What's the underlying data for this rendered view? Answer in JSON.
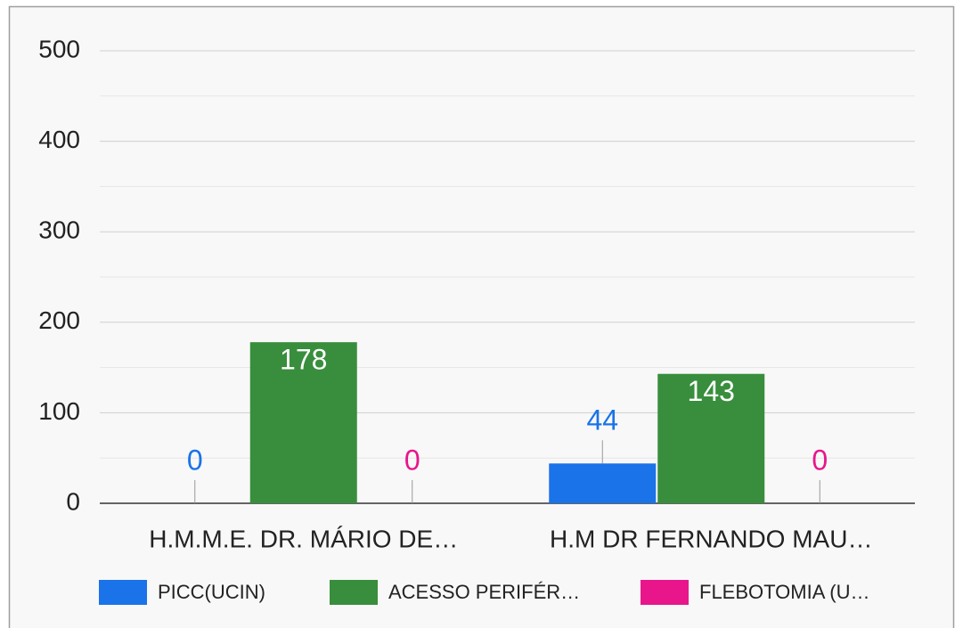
{
  "chart_data": {
    "type": "bar",
    "categories": [
      "H.M.M.E. DR. MÁRIO DE…",
      "H.M DR FERNANDO MAU…"
    ],
    "series": [
      {
        "name": "PICC(UCIN)",
        "color": "#1a73e8",
        "values": [
          0,
          44
        ]
      },
      {
        "name": "ACESSO PERIFÉR…",
        "color": "#388e3c",
        "values": [
          178,
          143
        ]
      },
      {
        "name": "FLEBOTOMIA (U…",
        "color": "#e8168a",
        "values": [
          0,
          0
        ]
      }
    ],
    "ylim": [
      0,
      500
    ],
    "yticks": [
      0,
      100,
      200,
      300,
      400,
      500
    ],
    "grid": true,
    "minor_grid": true,
    "legend": "bottom"
  }
}
